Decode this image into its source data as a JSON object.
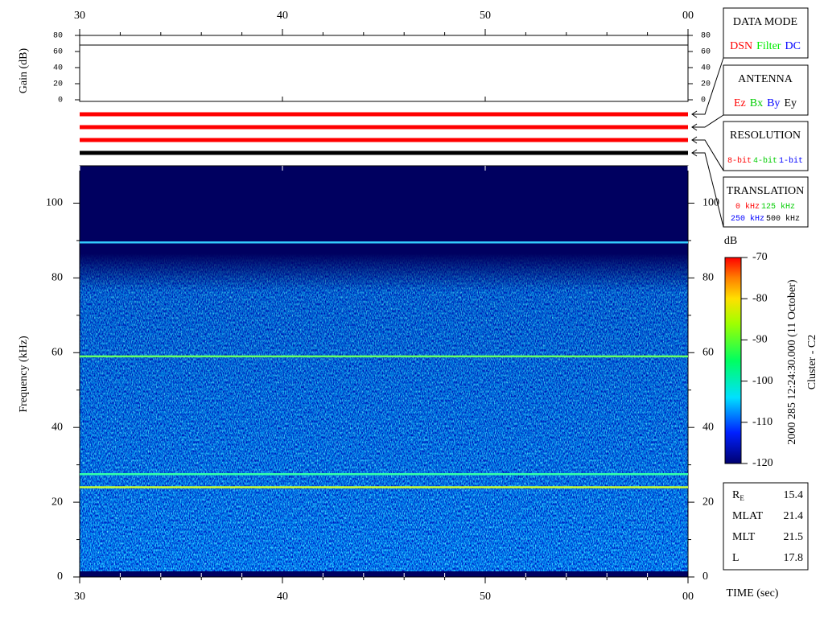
{
  "time_axis": {
    "xlim": [
      30,
      60
    ],
    "xticks": [
      30,
      40,
      50,
      {
        "value": 60,
        "label": "00"
      }
    ],
    "minor_xticks": [
      32,
      34,
      36,
      38,
      42,
      44,
      46,
      48,
      52,
      54,
      56,
      58
    ],
    "xlabel": "TIME (sec)"
  },
  "gain_panel": {
    "ylabel": "Gain (dB)",
    "ylim": [
      0,
      80
    ],
    "yticks": [
      0,
      20,
      40,
      60,
      80
    ],
    "gain_level": 68
  },
  "status_bars": [
    {
      "color": "#ff0000"
    },
    {
      "color": "#ff0000"
    },
    {
      "color": "#ff0000"
    },
    {
      "color": "#000000"
    }
  ],
  "spectrogram": {
    "ylabel": "Frequency (kHz)",
    "ylim": [
      0,
      110
    ],
    "yticks": [
      0,
      20,
      40,
      60,
      80,
      100
    ],
    "minor_yticks": [
      10,
      30,
      50,
      70,
      90
    ],
    "lines": [
      {
        "value": 89.5,
        "color": "#33ccff"
      },
      {
        "value": 59,
        "color": "#66ff66"
      },
      {
        "value": 27.5,
        "color": "#33ffaa"
      },
      {
        "value": 24,
        "color": "#ccff33"
      }
    ]
  },
  "colorbar": {
    "label": "dB",
    "lim": [
      -120,
      -70
    ],
    "ticks": [
      -120,
      -110,
      -100,
      -90,
      -80,
      -70
    ]
  },
  "panels": [
    {
      "title": "DATA MODE",
      "rows": [
        [
          {
            "text": "DSN",
            "color": "#ff0000"
          },
          {
            "text": "Filter",
            "color": "#00ee00"
          },
          {
            "text": "DC",
            "color": "#0000ff"
          }
        ]
      ]
    },
    {
      "title": "ANTENNA",
      "rows": [
        [
          {
            "text": "Ez",
            "color": "#ff0000"
          },
          {
            "text": "Bx",
            "color": "#00cc00"
          },
          {
            "text": "By",
            "color": "#0000ff"
          },
          {
            "text": "Ey",
            "color": "#000000"
          }
        ]
      ]
    },
    {
      "title": "RESOLUTION",
      "rows": [
        [
          {
            "text": "8-bit",
            "color": "#ff0000"
          },
          {
            "text": "4-bit",
            "color": "#00cc00"
          },
          {
            "text": "1-bit",
            "color": "#0000ff"
          }
        ]
      ]
    },
    {
      "title": "TRANSLATION",
      "rows": [
        [
          {
            "text": "0 kHz",
            "color": "#ff0000"
          },
          {
            "text": "125 kHz",
            "color": "#00cc00"
          }
        ],
        [
          {
            "text": "250 kHz",
            "color": "#0000ff"
          },
          {
            "text": "500 kHz",
            "color": "#000000"
          }
        ]
      ]
    }
  ],
  "event": {
    "time": "2000 285 12:24:30.000 (11 October)",
    "spacecraft": "Cluster - C2"
  },
  "orbit": [
    {
      "label": "R",
      "sub": "E",
      "value": 15.4
    },
    {
      "label": "MLAT",
      "value": 21.4
    },
    {
      "label": "MLT",
      "value": 21.5
    },
    {
      "label": "L",
      "value": 17.8
    }
  ]
}
